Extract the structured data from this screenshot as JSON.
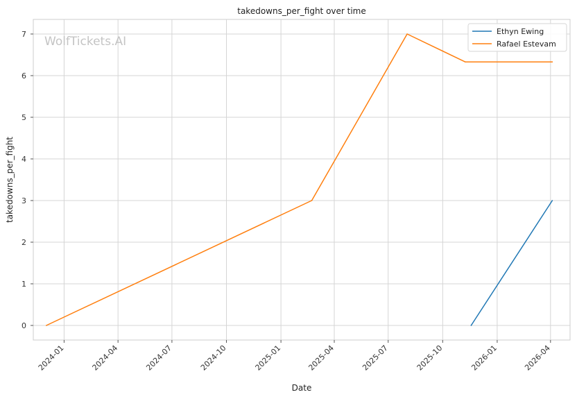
{
  "chart_data": {
    "type": "line",
    "title": "takedowns_per_fight over time",
    "xlabel": "Date",
    "ylabel": "takedowns_per_fight",
    "watermark": "WolfTickets.AI",
    "x_ticks": [
      "2024-01",
      "2024-04",
      "2024-07",
      "2024-10",
      "2025-01",
      "2025-04",
      "2025-07",
      "2025-10",
      "2026-01",
      "2026-04"
    ],
    "y_ticks": [
      0,
      1,
      2,
      3,
      4,
      5,
      6,
      7
    ],
    "xlim": [
      "2023-11-10",
      "2026-05-04"
    ],
    "ylim": [
      -0.35,
      7.35
    ],
    "grid": true,
    "legend_position": "top-right",
    "series": [
      {
        "name": "Ethyn Ewing",
        "color": "#1f77b4",
        "points": [
          {
            "x": "2025-11-18",
            "y": 0
          },
          {
            "x": "2026-04-04",
            "y": 3
          }
        ]
      },
      {
        "name": "Rafael Estevam",
        "color": "#ff7f0e",
        "points": [
          {
            "x": "2023-12-02",
            "y": 0
          },
          {
            "x": "2025-02-22",
            "y": 3
          },
          {
            "x": "2025-08-02",
            "y": 7
          },
          {
            "x": "2025-11-08",
            "y": 6.33
          },
          {
            "x": "2026-04-04",
            "y": 6.33
          }
        ]
      }
    ]
  }
}
